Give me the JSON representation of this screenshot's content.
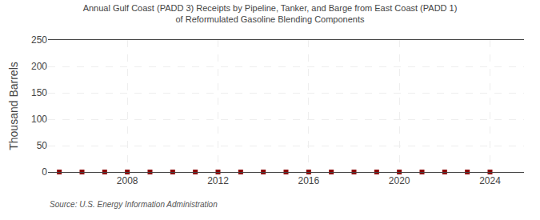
{
  "chart_data": {
    "type": "scatter",
    "title": "Annual Gulf Coast (PADD 3) Receipts by Pipeline, Tanker, and Barge from East Coast (PADD 1)\nof Reformulated Gasoline Blending Components",
    "y_label": "Thousand Barrels",
    "annotations": [
      "Source: U.S. Energy Information Administration"
    ],
    "x": [
      2005,
      2006,
      2007,
      2008,
      2009,
      2010,
      2011,
      2012,
      2013,
      2014,
      2015,
      2016,
      2017,
      2018,
      2019,
      2020,
      2021,
      2022,
      2023,
      2024
    ],
    "values": [
      0,
      0,
      0,
      0,
      0,
      0,
      0,
      0,
      0,
      0,
      0,
      0,
      0,
      0,
      0,
      0,
      0,
      0,
      0,
      0
    ],
    "color": "#8b0000",
    "marker": "square",
    "xlim": [
      2004.5,
      2025.5
    ],
    "xticks": [
      2008,
      2012,
      2016,
      2020,
      2024
    ],
    "ylim": [
      0,
      250
    ],
    "yticks": [
      0,
      50,
      100,
      150,
      200,
      250
    ],
    "grid": true
  }
}
